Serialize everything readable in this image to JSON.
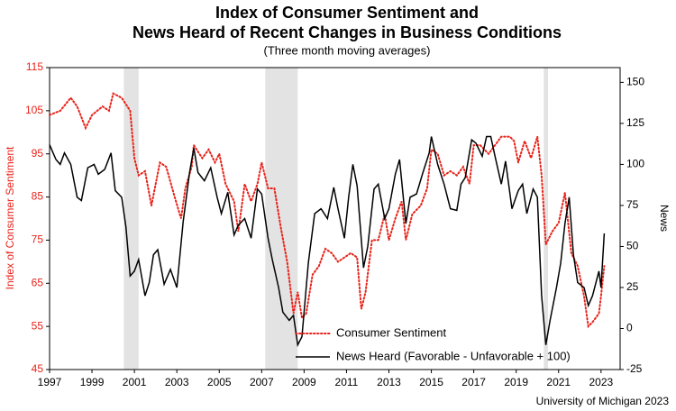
{
  "chart_data": {
    "type": "line",
    "title": [
      "Index of Consumer Sentiment and",
      "News Heard of Recent Changes in Business Conditions"
    ],
    "subtitle": "(Three month moving averages)",
    "y_label": "Index of Consumer Sentiment",
    "y2_label": "News",
    "source": "University of Michigan 2023",
    "xlim": [
      1997,
      2023.9
    ],
    "xticks": [
      1997,
      1999,
      2001,
      2003,
      2005,
      2007,
      2009,
      2011,
      2013,
      2015,
      2017,
      2019,
      2021,
      2023
    ],
    "ylim": [
      45,
      115
    ],
    "yticks": [
      45,
      55,
      65,
      75,
      85,
      95,
      105,
      115
    ],
    "y2lim": [
      -25,
      159
    ],
    "y2ticks": [
      -25,
      0,
      25,
      50,
      75,
      100,
      125,
      150
    ],
    "shading": [
      [
        2000.5,
        2001.2
      ],
      [
        2007.17,
        2008.7
      ],
      [
        2020.3,
        2020.5
      ]
    ],
    "legend": "lower center",
    "series": [
      {
        "name": "Consumer Sentiment",
        "color": "#e8231a",
        "style": "dotted",
        "axis": "y",
        "x": [
          1997.0,
          1997.5,
          1998.0,
          1998.3,
          1998.7,
          1999.0,
          1999.5,
          1999.8,
          2000.0,
          2000.4,
          2000.8,
          2001.0,
          2001.2,
          2001.5,
          2001.8,
          2002.2,
          2002.5,
          2002.9,
          2003.2,
          2003.4,
          2003.7,
          2003.8,
          2004.2,
          2004.5,
          2004.8,
          2005.0,
          2005.3,
          2005.7,
          2005.9,
          2006.2,
          2006.5,
          2006.8,
          2007.0,
          2007.3,
          2007.6,
          2007.9,
          2008.2,
          2008.5,
          2008.7,
          2008.9,
          2009.1,
          2009.4,
          2009.7,
          2010.0,
          2010.3,
          2010.6,
          2010.9,
          2011.2,
          2011.5,
          2011.7,
          2011.9,
          2012.2,
          2012.5,
          2012.8,
          2013.0,
          2013.3,
          2013.6,
          2013.8,
          2014.1,
          2014.5,
          2014.8,
          2015.0,
          2015.3,
          2015.6,
          2015.9,
          2016.2,
          2016.5,
          2016.8,
          2017.0,
          2017.3,
          2017.7,
          2018.0,
          2018.3,
          2018.7,
          2018.9,
          2019.1,
          2019.4,
          2019.7,
          2020.0,
          2020.2,
          2020.4,
          2020.7,
          2021.0,
          2021.3,
          2021.6,
          2021.9,
          2022.2,
          2022.4,
          2022.6,
          2022.9,
          2023.0,
          2023.15
        ],
        "values": [
          104,
          105,
          108,
          106,
          101,
          104,
          106,
          105,
          109,
          108,
          105,
          94,
          90,
          91,
          83,
          93,
          92,
          85,
          80,
          87,
          92,
          97,
          94,
          96,
          93,
          95,
          88,
          84,
          77,
          88,
          84,
          88,
          93,
          87,
          87,
          78,
          70,
          58,
          63,
          57,
          58,
          67,
          69,
          73,
          72,
          70,
          71,
          72,
          71,
          59,
          63,
          75,
          75,
          81,
          75,
          80,
          84,
          75,
          81,
          83,
          87,
          96,
          95,
          90,
          91,
          90,
          92,
          88,
          97,
          97,
          95,
          97,
          99,
          99,
          98,
          93,
          98,
          94,
          99,
          90,
          74,
          77,
          79,
          86,
          72,
          69,
          62,
          55,
          56,
          58,
          62,
          69
        ]
      },
      {
        "name": "News Heard (Favorable - Unfavorable + 100)",
        "color": "#000000",
        "style": "solid",
        "axis": "y2",
        "x": [
          1997.0,
          1997.3,
          1997.5,
          1997.7,
          1998.0,
          1998.3,
          1998.5,
          1998.8,
          1999.1,
          1999.3,
          1999.6,
          1999.9,
          2000.1,
          2000.4,
          2000.6,
          2000.8,
          2001.0,
          2001.2,
          2001.5,
          2001.7,
          2001.9,
          2002.1,
          2002.4,
          2002.7,
          2003.0,
          2003.3,
          2003.6,
          2003.8,
          2004.0,
          2004.3,
          2004.6,
          2004.9,
          2005.1,
          2005.4,
          2005.7,
          2005.9,
          2006.2,
          2006.5,
          2006.8,
          2007.0,
          2007.3,
          2007.5,
          2007.8,
          2008.0,
          2008.3,
          2008.5,
          2008.7,
          2008.9,
          2009.2,
          2009.5,
          2009.8,
          2010.1,
          2010.4,
          2010.6,
          2010.9,
          2011.1,
          2011.3,
          2011.5,
          2011.8,
          2012.0,
          2012.3,
          2012.5,
          2012.8,
          2013.0,
          2013.3,
          2013.5,
          2013.8,
          2014.0,
          2014.3,
          2014.6,
          2014.9,
          2015.0,
          2015.3,
          2015.6,
          2015.9,
          2016.2,
          2016.4,
          2016.6,
          2016.9,
          2017.1,
          2017.4,
          2017.6,
          2017.8,
          2018.0,
          2018.3,
          2018.5,
          2018.8,
          2019.1,
          2019.3,
          2019.5,
          2019.8,
          2020.0,
          2020.2,
          2020.4,
          2020.6,
          2020.9,
          2021.1,
          2021.3,
          2021.5,
          2021.7,
          2021.9,
          2022.2,
          2022.4,
          2022.6,
          2022.9,
          2023.0,
          2023.15
        ],
        "values": [
          112,
          103,
          100,
          107,
          100,
          80,
          78,
          98,
          100,
          94,
          97,
          107,
          84,
          80,
          62,
          32,
          35,
          42,
          20,
          28,
          45,
          48,
          27,
          36,
          25,
          65,
          95,
          110,
          95,
          90,
          98,
          80,
          70,
          83,
          57,
          63,
          67,
          55,
          85,
          82,
          55,
          42,
          25,
          10,
          5,
          8,
          -10,
          -5,
          40,
          70,
          73,
          67,
          86,
          73,
          55,
          80,
          100,
          87,
          37,
          50,
          85,
          88,
          67,
          73,
          94,
          103,
          64,
          80,
          82,
          95,
          107,
          117,
          100,
          88,
          73,
          72,
          88,
          92,
          115,
          113,
          105,
          117,
          117,
          105,
          88,
          102,
          73,
          84,
          88,
          70,
          85,
          80,
          20,
          -10,
          5,
          25,
          40,
          64,
          80,
          45,
          28,
          25,
          14,
          20,
          35,
          25,
          58
        ]
      }
    ]
  }
}
